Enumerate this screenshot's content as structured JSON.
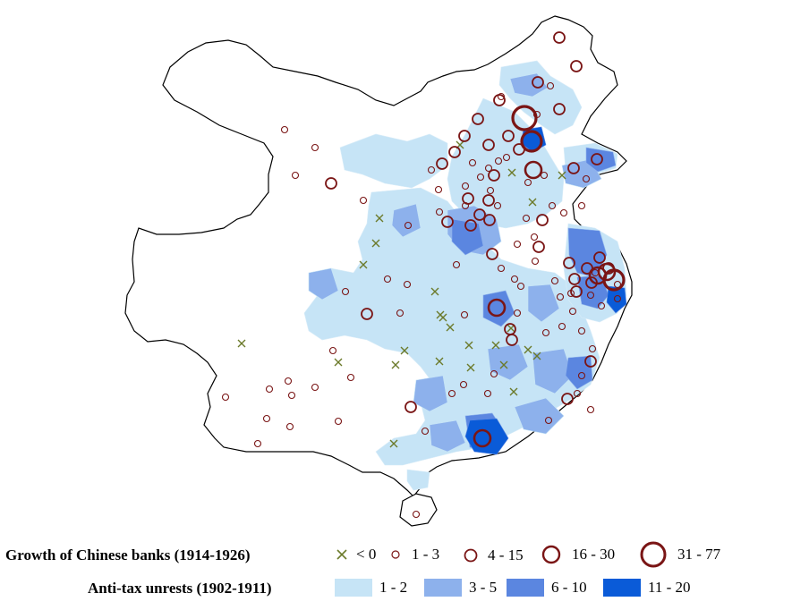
{
  "legend": {
    "banks": {
      "title": "Growth of Chinese banks (1914-1926)",
      "classes": [
        {
          "label": "< 0",
          "symbol": "cross-icon",
          "color": "#6b7a2a"
        },
        {
          "label": "1 - 3",
          "symbol": "circle-icon",
          "size": "smallest",
          "color": "#7a1515"
        },
        {
          "label": "4 - 15",
          "symbol": "circle-icon",
          "size": "small",
          "color": "#7a1515"
        },
        {
          "label": "16 - 30",
          "symbol": "circle-icon",
          "size": "medium",
          "color": "#7a1515"
        },
        {
          "label": "31 - 77",
          "symbol": "circle-icon",
          "size": "large",
          "color": "#7a1515"
        }
      ]
    },
    "unrest": {
      "title": "Anti-tax unrests (1902-1911)",
      "classes": [
        {
          "label": "1 - 2",
          "color": "#c6e4f6"
        },
        {
          "label": "3 - 5",
          "color": "#8db1ec"
        },
        {
          "label": "6 - 10",
          "color": "#5b86e0"
        },
        {
          "label": "11 - 20",
          "color": "#0a5bd8"
        }
      ]
    }
  },
  "map_style": {
    "land_fill": "#ffffff",
    "border_color": "#000000",
    "marker_color": "#7a1515",
    "cross_color": "#6b7a2a"
  }
}
